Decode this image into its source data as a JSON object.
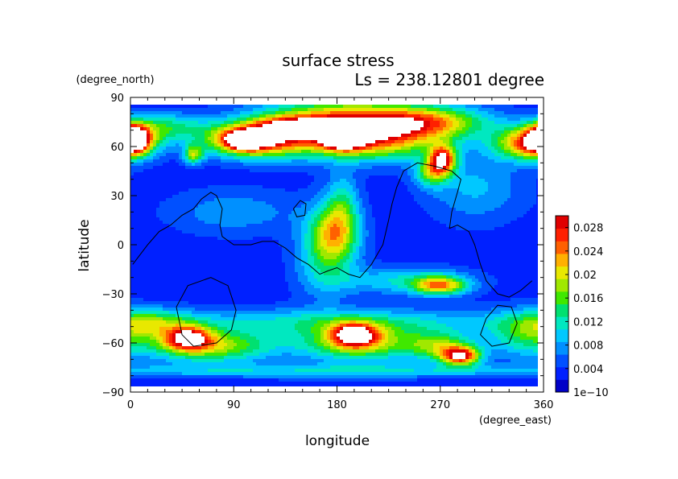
{
  "chart_data": {
    "type": "heatmap",
    "title": "surface stress",
    "subtitle": "Ls = 238.12801 degree",
    "xlabel": "longitude",
    "ylabel": "latitude",
    "x_units": "(degree_east)",
    "y_units": "(degree_north)",
    "xlim": [
      0,
      360
    ],
    "ylim": [
      -90,
      90
    ],
    "x_ticks": [
      "0",
      "90",
      "180",
      "270",
      "360"
    ],
    "y_ticks": [
      "90",
      "60",
      "30",
      "0",
      "−30",
      "−60",
      "−90"
    ],
    "x_tick_values": [
      0,
      90,
      180,
      270,
      360
    ],
    "y_tick_values": [
      90,
      60,
      30,
      0,
      -30,
      -60,
      -90
    ],
    "colorbar": {
      "min": 0,
      "max": 0.03,
      "labels": [
        "1e−10",
        "0.004",
        "0.008",
        "0.012",
        "0.016",
        "0.02",
        "0.024",
        "0.028"
      ],
      "label_values": [
        0,
        0.004,
        0.008,
        0.012,
        0.016,
        0.02,
        0.024,
        0.028
      ],
      "colors": [
        "#0000c8",
        "#0020ff",
        "#0050ff",
        "#0090ff",
        "#00c8ff",
        "#00e8c0",
        "#00e070",
        "#40e800",
        "#a0e800",
        "#e8e800",
        "#ffb000",
        "#ff6000",
        "#ff2000",
        "#e00000"
      ]
    },
    "grid": false,
    "background_value": 0.003,
    "blobs": [
      {
        "lon": 180,
        "lat": 72,
        "sx": 48,
        "sy": 11,
        "v": 0.024
      },
      {
        "lon": 185,
        "lat": 67,
        "sx": 12,
        "sy": 5,
        "v": 0.034
      },
      {
        "lon": 105,
        "lat": 64,
        "sx": 28,
        "sy": 7,
        "v": 0.026
      },
      {
        "lon": 100,
        "lat": 64,
        "sx": 9,
        "sy": 3,
        "v": 0.034
      },
      {
        "lon": 255,
        "lat": 75,
        "sx": 40,
        "sy": 7,
        "v": 0.018
      },
      {
        "lon": 2,
        "lat": 65,
        "sx": 10,
        "sy": 6,
        "v": 0.026
      },
      {
        "lon": 350,
        "lat": 62,
        "sx": 22,
        "sy": 7,
        "v": 0.024
      },
      {
        "lon": 272,
        "lat": 52,
        "sx": 8,
        "sy": 6,
        "v": 0.024
      },
      {
        "lon": 262,
        "lat": 44,
        "sx": 10,
        "sy": 6,
        "v": 0.012
      },
      {
        "lon": 55,
        "lat": 55,
        "sx": 6,
        "sy": 4,
        "v": 0.014
      },
      {
        "lon": 140,
        "lat": 73,
        "sx": 22,
        "sy": 4,
        "v": 0.012
      },
      {
        "lon": 30,
        "lat": 72,
        "sx": 25,
        "sy": 6,
        "v": 0.01
      },
      {
        "lon": 220,
        "lat": 62,
        "sx": 40,
        "sy": 8,
        "v": 0.01
      },
      {
        "lon": 180,
        "lat": 8,
        "sx": 14,
        "sy": 12,
        "v": 0.013
      },
      {
        "lon": 170,
        "lat": -5,
        "sx": 18,
        "sy": 18,
        "v": 0.01
      },
      {
        "lon": 185,
        "lat": 28,
        "sx": 10,
        "sy": 12,
        "v": 0.007
      },
      {
        "lon": 270,
        "lat": -25,
        "sx": 16,
        "sy": 4,
        "v": 0.017
      },
      {
        "lon": 240,
        "lat": -22,
        "sx": 40,
        "sy": 6,
        "v": 0.008
      },
      {
        "lon": 200,
        "lat": -60,
        "sx": 38,
        "sy": 8,
        "v": 0.016
      },
      {
        "lon": 195,
        "lat": -55,
        "sx": 14,
        "sy": 5,
        "v": 0.02
      },
      {
        "lon": 70,
        "lat": -62,
        "sx": 38,
        "sy": 7,
        "v": 0.016
      },
      {
        "lon": 50,
        "lat": -57,
        "sx": 14,
        "sy": 5,
        "v": 0.02
      },
      {
        "lon": 288,
        "lat": -68,
        "sx": 12,
        "sy": 4,
        "v": 0.024
      },
      {
        "lon": 270,
        "lat": -62,
        "sx": 20,
        "sy": 6,
        "v": 0.012
      },
      {
        "lon": 180,
        "lat": -47,
        "sx": 120,
        "sy": 6,
        "v": 0.008
      },
      {
        "lon": 20,
        "lat": -48,
        "sx": 25,
        "sy": 6,
        "v": 0.01
      },
      {
        "lon": 345,
        "lat": -55,
        "sx": 25,
        "sy": 10,
        "v": 0.01
      },
      {
        "lon": 180,
        "lat": -77,
        "sx": 200,
        "sy": 3,
        "v": 0.007
      },
      {
        "lon": 300,
        "lat": 35,
        "sx": 30,
        "sy": 15,
        "v": 0.006
      },
      {
        "lon": 90,
        "lat": 20,
        "sx": 40,
        "sy": 10,
        "v": 0.005
      }
    ],
    "contours": [
      [
        [
          2,
          -12
        ],
        [
          15,
          0
        ],
        [
          25,
          8
        ],
        [
          35,
          12
        ],
        [
          45,
          18
        ],
        [
          55,
          22
        ],
        [
          62,
          28
        ],
        [
          70,
          32
        ],
        [
          75,
          30
        ],
        [
          80,
          22
        ],
        [
          78,
          12
        ],
        [
          80,
          5
        ],
        [
          90,
          0
        ],
        [
          105,
          0
        ],
        [
          115,
          2
        ],
        [
          125,
          2
        ],
        [
          135,
          -2
        ],
        [
          145,
          -8
        ],
        [
          155,
          -12
        ],
        [
          165,
          -18
        ],
        [
          172,
          -16
        ],
        [
          180,
          -14
        ],
        [
          190,
          -18
        ],
        [
          200,
          -20
        ],
        [
          210,
          -12
        ],
        [
          220,
          0
        ],
        [
          225,
          15
        ],
        [
          228,
          25
        ],
        [
          232,
          35
        ],
        [
          238,
          45
        ],
        [
          250,
          50
        ],
        [
          265,
          48
        ],
        [
          280,
          45
        ],
        [
          288,
          40
        ],
        [
          285,
          32
        ],
        [
          280,
          20
        ],
        [
          278,
          10
        ],
        [
          285,
          12
        ],
        [
          295,
          8
        ],
        [
          300,
          0
        ],
        [
          305,
          -12
        ],
        [
          310,
          -22
        ],
        [
          320,
          -30
        ],
        [
          330,
          -32
        ],
        [
          340,
          -28
        ],
        [
          350,
          -22
        ]
      ],
      [
        [
          142,
          22
        ],
        [
          148,
          27
        ],
        [
          153,
          25
        ],
        [
          152,
          18
        ],
        [
          145,
          17
        ],
        [
          142,
          22
        ]
      ],
      [
        [
          40,
          -38
        ],
        [
          50,
          -25
        ],
        [
          70,
          -20
        ],
        [
          85,
          -25
        ],
        [
          92,
          -40
        ],
        [
          88,
          -52
        ],
        [
          75,
          -60
        ],
        [
          55,
          -62
        ],
        [
          45,
          -55
        ],
        [
          40,
          -38
        ]
      ],
      [
        [
          310,
          -45
        ],
        [
          320,
          -37
        ],
        [
          332,
          -38
        ],
        [
          337,
          -48
        ],
        [
          330,
          -60
        ],
        [
          315,
          -62
        ],
        [
          305,
          -55
        ],
        [
          310,
          -45
        ]
      ]
    ]
  }
}
